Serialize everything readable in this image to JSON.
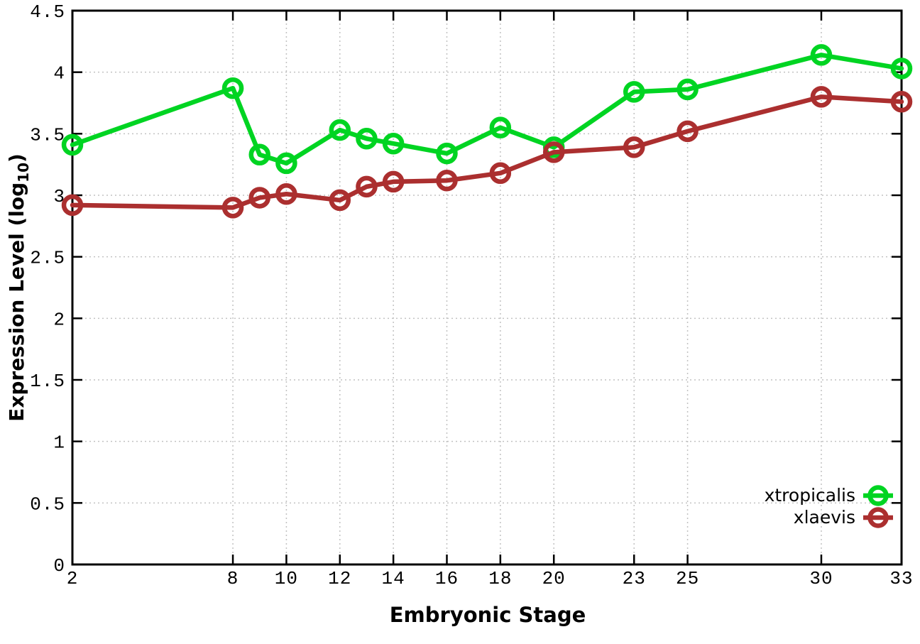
{
  "chart_data": {
    "type": "line",
    "title": "",
    "xlabel": "Embryonic Stage",
    "ylabel": "Expression Level (log10)",
    "ylabel_parts": {
      "prefix": "Expression Level (log",
      "sub": "10",
      "suffix": ")"
    },
    "x": [
      2,
      8,
      9,
      10,
      12,
      13,
      14,
      16,
      18,
      20,
      23,
      25,
      30,
      33
    ],
    "series": [
      {
        "name": "xtropicalis",
        "color": "#00d422",
        "values": [
          3.41,
          3.87,
          3.33,
          3.26,
          3.53,
          3.46,
          3.42,
          3.34,
          3.55,
          3.39,
          3.84,
          3.86,
          4.14,
          4.03
        ]
      },
      {
        "name": "xlaevis",
        "color": "#ab2f2f",
        "values": [
          2.92,
          2.9,
          2.98,
          3.01,
          2.96,
          3.07,
          3.11,
          3.12,
          3.18,
          3.35,
          3.39,
          3.52,
          3.8,
          3.76
        ]
      }
    ],
    "xlim": [
      2,
      33
    ],
    "ylim": [
      0,
      4.5
    ],
    "x_ticks": [
      2,
      8,
      10,
      12,
      14,
      16,
      18,
      20,
      23,
      25,
      30,
      33
    ],
    "y_ticks": [
      0,
      0.5,
      1,
      1.5,
      2,
      2.5,
      3,
      3.5,
      4,
      4.5
    ],
    "grid": true,
    "legend_position": "inside-bottom-right",
    "marker": "open-circle",
    "colors": {
      "axis": "#000000",
      "grid": "#c2c2c2",
      "tick_label": "#000000"
    }
  }
}
